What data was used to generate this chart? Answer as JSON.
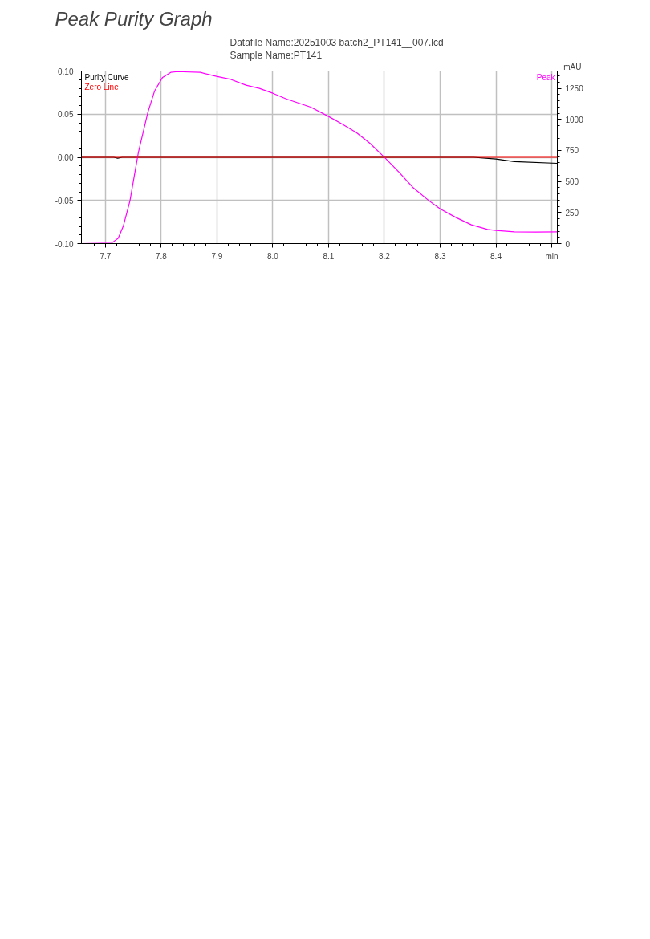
{
  "chart_data": {
    "type": "line",
    "title": "Peak Purity Graph",
    "annotations": [
      "Datafile Name:20251003 batch2_PT141__007.lcd",
      "Sample Name:PT141"
    ],
    "y2label": "mAU",
    "xlim": [
      7.657,
      8.51
    ],
    "xticks": [
      7.7,
      7.8,
      7.9,
      {
        "value": 8.0,
        "label": "8.0"
      },
      8.1,
      8.2,
      8.3,
      8.4,
      {
        "value": 8.5,
        "label": "min"
      }
    ],
    "ylim": [
      -0.1,
      0.1
    ],
    "yticks": [
      {
        "value": -0.1,
        "label": "-0.10"
      },
      {
        "value": -0.05,
        "label": "-0.05"
      },
      {
        "value": 0,
        "label": "0.00"
      },
      {
        "value": 0.05,
        "label": "0.05"
      },
      {
        "value": 0.1,
        "label": "0.10"
      }
    ],
    "y2lim": [
      0,
      1390
    ],
    "y2ticks": [
      0,
      250,
      500,
      750,
      1000,
      1250
    ],
    "grid": true,
    "legend": "top left",
    "ref_lines": [
      {
        "axis": "y",
        "value": 0,
        "label": "Zero Line",
        "color": "#ff0000"
      }
    ],
    "series": [
      {
        "name": "Purity Curve",
        "color": "#000000",
        "x": [
          7.657,
          7.7,
          7.715,
          7.722,
          7.73,
          8.36,
          8.4,
          8.433,
          8.51
        ],
        "values": [
          0,
          0,
          0,
          -0.001,
          0,
          0,
          -0.002,
          -0.005,
          -0.007
        ]
      },
      {
        "name": "Peak",
        "color": "#ff00ff",
        "axis": "y2",
        "x": [
          7.657,
          7.711,
          7.723,
          7.732,
          7.744,
          7.759,
          7.776,
          7.788,
          7.802,
          7.817,
          7.829,
          7.87,
          7.899,
          7.923,
          7.952,
          7.976,
          8.0,
          8.025,
          8.068,
          8.1,
          8.126,
          8.15,
          8.174,
          8.2,
          8.227,
          8.251,
          8.28,
          8.3,
          8.328,
          8.356,
          8.385,
          8.4,
          8.433,
          8.471,
          8.51
        ],
        "values": [
          0,
          4,
          43,
          140,
          345,
          733,
          1056,
          1228,
          1336,
          1379,
          1385,
          1379,
          1347,
          1325,
          1276,
          1250,
          1211,
          1164,
          1099,
          1024,
          959,
          894,
          808,
          696,
          571,
          453,
          345,
          280,
          211,
          151,
          114,
          106,
          95,
          93,
          95
        ]
      }
    ]
  }
}
